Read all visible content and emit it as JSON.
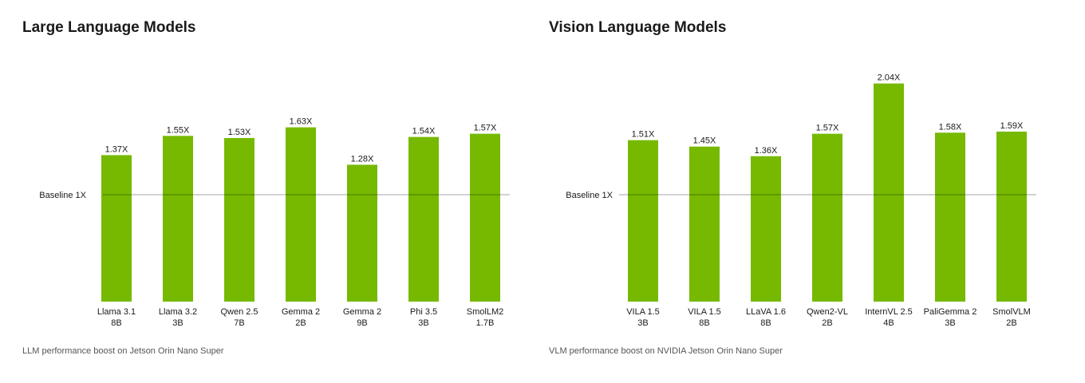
{
  "chart_data": [
    {
      "type": "bar",
      "title": "Large Language Models",
      "caption": "LLM performance boost on Jetson Orin Nano Super",
      "baseline_label": "Baseline 1X",
      "baseline_value": 1,
      "categories": [
        [
          "Llama 3.1",
          "8B"
        ],
        [
          "Llama 3.2",
          "3B"
        ],
        [
          "Qwen 2.5",
          "7B"
        ],
        [
          "Gemma 2",
          "2B"
        ],
        [
          "Gemma 2",
          "9B"
        ],
        [
          "Phi 3.5",
          "3B"
        ],
        [
          "SmolLM2",
          "1.7B"
        ]
      ],
      "values": [
        1.37,
        1.55,
        1.53,
        1.63,
        1.28,
        1.54,
        1.57
      ],
      "data_labels": [
        "1.37X",
        "1.55X",
        "1.53X",
        "1.63X",
        "1.28X",
        "1.54X",
        "1.57X"
      ],
      "ylim": [
        0,
        2.1
      ],
      "color": "#76b900"
    },
    {
      "type": "bar",
      "title": "Vision Language Models",
      "caption": "VLM performance boost on NVIDIA Jetson Orin Nano Super",
      "baseline_label": "Baseline 1X",
      "baseline_value": 1,
      "categories": [
        [
          "VILA 1.5",
          "3B"
        ],
        [
          "VILA 1.5",
          "8B"
        ],
        [
          "LLaVA 1.6",
          "8B"
        ],
        [
          "Qwen2-VL",
          "2B"
        ],
        [
          "InternVL 2.5",
          "4B"
        ],
        [
          "PaliGemma 2",
          "3B"
        ],
        [
          "SmolVLM",
          "2B"
        ]
      ],
      "values": [
        1.51,
        1.45,
        1.36,
        1.57,
        2.04,
        1.58,
        1.59
      ],
      "data_labels": [
        "1.51X",
        "1.45X",
        "1.36X",
        "1.57X",
        "2.04X",
        "1.58X",
        "1.59X"
      ],
      "ylim": [
        0,
        2.1
      ],
      "color": "#76b900"
    }
  ]
}
